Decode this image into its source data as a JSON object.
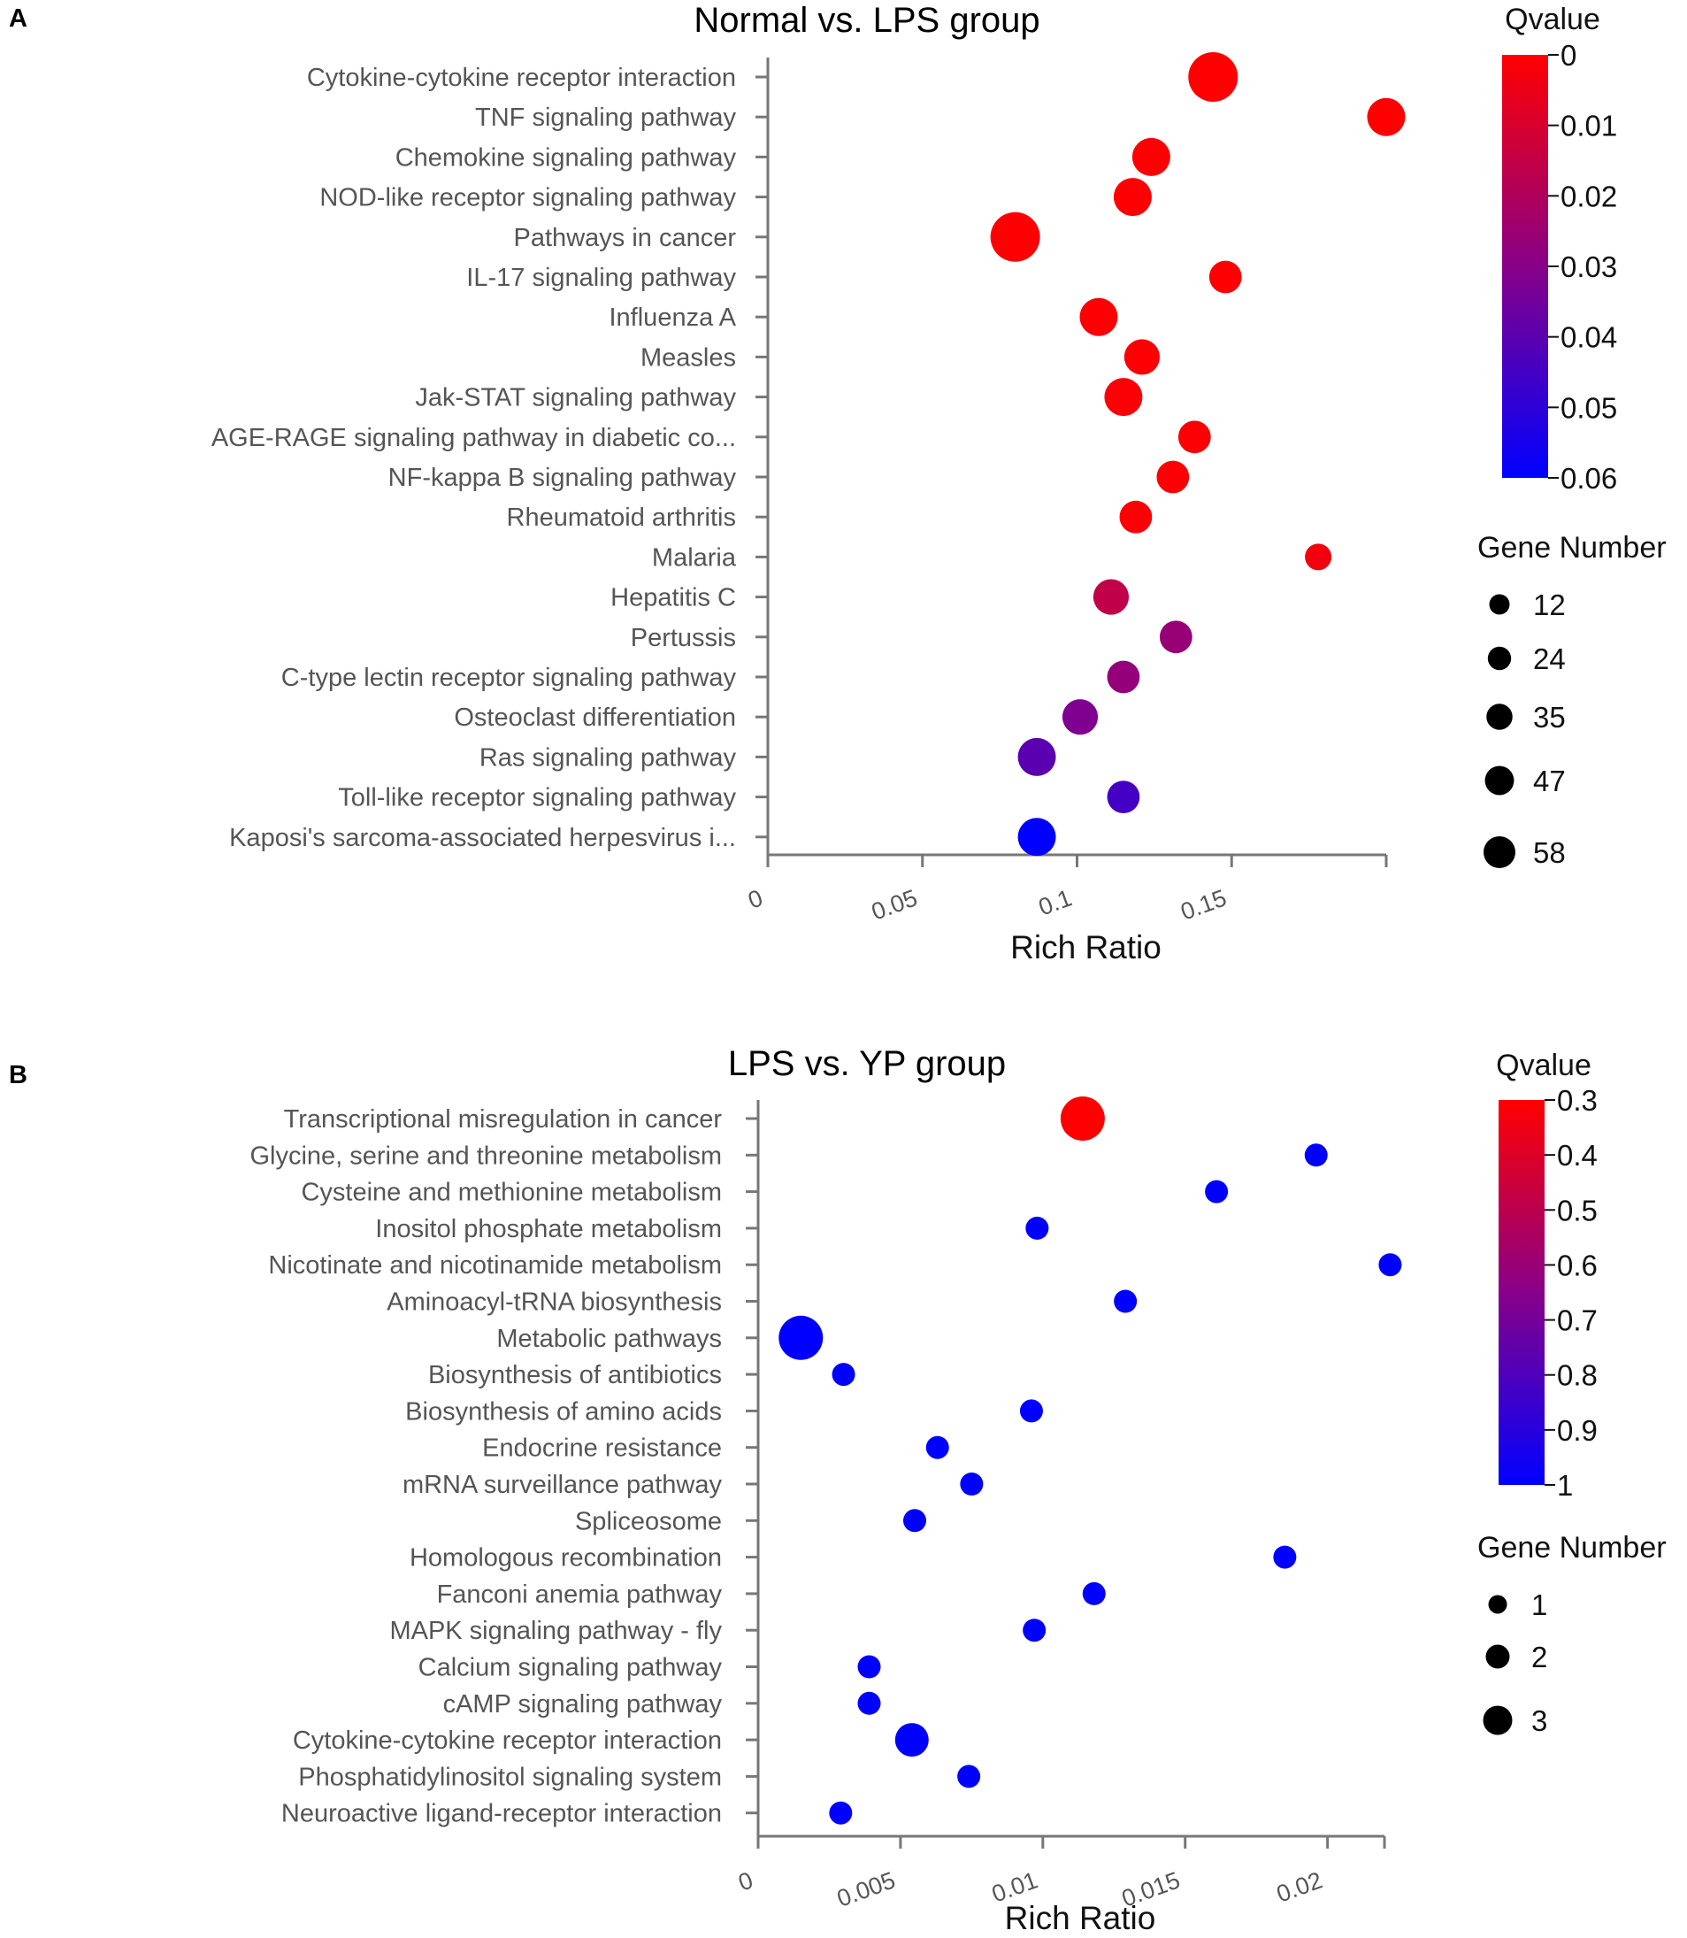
{
  "chart_data": [
    {
      "panel_label": "A",
      "type": "scatter",
      "title": "Normal vs. LPS group",
      "xlabel": "Rich Ratio",
      "xlim": [
        0,
        0.2
      ],
      "xticks": [
        "0",
        "0.05",
        "0.1",
        "0.15"
      ],
      "xtick_values": [
        0,
        0.05,
        0.1,
        0.15
      ],
      "color_legend": {
        "title": "Qvalue",
        "ticks": [
          "0",
          "0.01",
          "0.02",
          "0.03",
          "0.04",
          "0.05",
          "0.06"
        ],
        "range": [
          0,
          0.06
        ],
        "low_color": "#ff0000",
        "high_color": "#0000ff"
      },
      "size_legend": {
        "title": "Gene Number",
        "values": [
          "12",
          "24",
          "35",
          "47",
          "58"
        ],
        "range": [
          12,
          58
        ]
      },
      "points": [
        {
          "term": "Cytokine-cytokine receptor interaction",
          "rich_ratio": 0.144,
          "qvalue": 0.0,
          "genes": 58
        },
        {
          "term": "TNF signaling pathway",
          "rich_ratio": 0.2,
          "qvalue": 0.0,
          "genes": 35
        },
        {
          "term": "Chemokine signaling pathway",
          "rich_ratio": 0.124,
          "qvalue": 0.0005,
          "genes": 35
        },
        {
          "term": "NOD-like receptor signaling pathway",
          "rich_ratio": 0.118,
          "qvalue": 0.0005,
          "genes": 35
        },
        {
          "term": "Pathways in cancer",
          "rich_ratio": 0.08,
          "qvalue": 0.0005,
          "genes": 58
        },
        {
          "term": "IL-17 signaling pathway",
          "rich_ratio": 0.148,
          "qvalue": 0.0005,
          "genes": 24
        },
        {
          "term": "Influenza A",
          "rich_ratio": 0.107,
          "qvalue": 0.0008,
          "genes": 35
        },
        {
          "term": "Measles",
          "rich_ratio": 0.121,
          "qvalue": 0.0008,
          "genes": 30
        },
        {
          "term": "Jak-STAT signaling pathway",
          "rich_ratio": 0.115,
          "qvalue": 0.001,
          "genes": 35
        },
        {
          "term": "AGE-RAGE signaling pathway in diabetic co...",
          "rich_ratio": 0.138,
          "qvalue": 0.001,
          "genes": 24
        },
        {
          "term": "NF-kappa B signaling pathway",
          "rich_ratio": 0.131,
          "qvalue": 0.001,
          "genes": 24
        },
        {
          "term": "Rheumatoid arthritis",
          "rich_ratio": 0.119,
          "qvalue": 0.001,
          "genes": 24
        },
        {
          "term": "Malaria",
          "rich_ratio": 0.178,
          "qvalue": 0.003,
          "genes": 12
        },
        {
          "term": "Hepatitis C",
          "rich_ratio": 0.111,
          "qvalue": 0.016,
          "genes": 30
        },
        {
          "term": "Pertussis",
          "rich_ratio": 0.132,
          "qvalue": 0.026,
          "genes": 24
        },
        {
          "term": "C-type lectin receptor signaling pathway",
          "rich_ratio": 0.115,
          "qvalue": 0.027,
          "genes": 24
        },
        {
          "term": "Osteoclast differentiation",
          "rich_ratio": 0.101,
          "qvalue": 0.032,
          "genes": 30
        },
        {
          "term": "Ras signaling pathway",
          "rich_ratio": 0.087,
          "qvalue": 0.04,
          "genes": 35
        },
        {
          "term": "Toll-like receptor signaling pathway",
          "rich_ratio": 0.115,
          "qvalue": 0.045,
          "genes": 24
        },
        {
          "term": "Kaposi's sarcoma-associated herpesvirus i...",
          "rich_ratio": 0.087,
          "qvalue": 0.06,
          "genes": 35
        }
      ]
    },
    {
      "panel_label": "B",
      "type": "scatter",
      "title": "LPS vs. YP group",
      "xlabel": "Rich Ratio",
      "xlim": [
        0,
        0.022
      ],
      "xticks": [
        "0",
        "0.005",
        "0.01",
        "0.015",
        "0.02"
      ],
      "xtick_values": [
        0,
        0.005,
        0.01,
        0.015,
        0.02
      ],
      "color_legend": {
        "title": "Qvalue",
        "ticks": [
          "0.3",
          "0.4",
          "0.5",
          "0.6",
          "0.7",
          "0.8",
          "0.9",
          "1"
        ],
        "range": [
          0.3,
          1
        ],
        "low_color": "#ff0000",
        "high_color": "#0000ff"
      },
      "size_legend": {
        "title": "Gene Number",
        "values": [
          "1",
          "2",
          "3"
        ],
        "range": [
          1,
          3
        ]
      },
      "points": [
        {
          "term": "Transcriptional misregulation in cancer",
          "rich_ratio": 0.0114,
          "qvalue": 0.3,
          "genes": 3
        },
        {
          "term": "Glycine, serine and threonine metabolism",
          "rich_ratio": 0.0196,
          "qvalue": 1,
          "genes": 1
        },
        {
          "term": "Cysteine and methionine metabolism",
          "rich_ratio": 0.0161,
          "qvalue": 1,
          "genes": 1
        },
        {
          "term": "Inositol phosphate metabolism",
          "rich_ratio": 0.0098,
          "qvalue": 1,
          "genes": 1
        },
        {
          "term": "Nicotinate and nicotinamide metabolism",
          "rich_ratio": 0.0222,
          "qvalue": 1,
          "genes": 1
        },
        {
          "term": "Aminoacyl-tRNA biosynthesis",
          "rich_ratio": 0.0129,
          "qvalue": 1,
          "genes": 1
        },
        {
          "term": "Metabolic pathways",
          "rich_ratio": 0.0015,
          "qvalue": 1,
          "genes": 3
        },
        {
          "term": "Biosynthesis of antibiotics",
          "rich_ratio": 0.003,
          "qvalue": 1,
          "genes": 1
        },
        {
          "term": "Biosynthesis of amino acids",
          "rich_ratio": 0.0096,
          "qvalue": 1,
          "genes": 1
        },
        {
          "term": "Endocrine resistance",
          "rich_ratio": 0.0063,
          "qvalue": 1,
          "genes": 1
        },
        {
          "term": "mRNA surveillance pathway",
          "rich_ratio": 0.0075,
          "qvalue": 1,
          "genes": 1
        },
        {
          "term": "Spliceosome",
          "rich_ratio": 0.0055,
          "qvalue": 1,
          "genes": 1
        },
        {
          "term": "Homologous recombination",
          "rich_ratio": 0.0185,
          "qvalue": 1,
          "genes": 1
        },
        {
          "term": "Fanconi anemia pathway",
          "rich_ratio": 0.0118,
          "qvalue": 1,
          "genes": 1
        },
        {
          "term": "MAPK signaling pathway - fly",
          "rich_ratio": 0.0097,
          "qvalue": 1,
          "genes": 1
        },
        {
          "term": "Calcium signaling pathway",
          "rich_ratio": 0.0039,
          "qvalue": 1,
          "genes": 1
        },
        {
          "term": "cAMP signaling pathway",
          "rich_ratio": 0.0039,
          "qvalue": 1,
          "genes": 1
        },
        {
          "term": "Cytokine-cytokine receptor interaction",
          "rich_ratio": 0.0054,
          "qvalue": 1,
          "genes": 2
        },
        {
          "term": "Phosphatidylinositol signaling system",
          "rich_ratio": 0.0074,
          "qvalue": 1,
          "genes": 1
        },
        {
          "term": "Neuroactive ligand-receptor interaction",
          "rich_ratio": 0.0029,
          "qvalue": 1,
          "genes": 1
        }
      ]
    }
  ]
}
